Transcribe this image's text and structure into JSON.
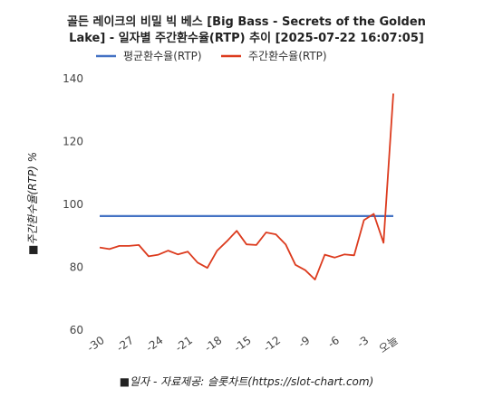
{
  "chart_data": {
    "type": "line",
    "title_lines": [
      "골든 레이크의 비밀 빅 베스 [Big Bass - Secrets of the Golden",
      "Lake] - 일자별 주간환수율(RTP) 추이 [2025-07-22 16:07:05]"
    ],
    "xlabel": "■일자 - 자료제공: 슬롯차트(https://slot-chart.com)",
    "ylabel": "■주간환수율(RTP) %",
    "ylim": [
      60,
      140
    ],
    "yticks": [
      60,
      80,
      100,
      120,
      140
    ],
    "xticks": [
      "-30",
      "-27",
      "-24",
      "-21",
      "-18",
      "-15",
      "-12",
      "-9",
      "-6",
      "-3",
      "오늘"
    ],
    "xtick_positions": [
      -30,
      -27,
      -24,
      -21,
      -18,
      -15,
      -12,
      -9,
      -6,
      -3,
      0
    ],
    "xlim": [
      -30,
      0
    ],
    "grid": false,
    "legend_position": "top-left",
    "series": [
      {
        "name": "평균환수율(RTP)",
        "color": "#4472c4",
        "x": [
          -30,
          0
        ],
        "values": [
          96,
          96
        ]
      },
      {
        "name": "주간환수율(RTP)",
        "color": "#dc3b1e",
        "x": [
          -30,
          -29,
          -28,
          -27,
          -26,
          -25,
          -24,
          -23,
          -22,
          -21,
          -20,
          -19,
          -18,
          -17,
          -16,
          -15,
          -14,
          -13,
          -12,
          -11,
          -10,
          -9,
          -8,
          -7,
          -6,
          -5,
          -4,
          -3,
          -2,
          -1,
          0
        ],
        "values": [
          86,
          85.5,
          86.5,
          86.5,
          86.8,
          83.2,
          83.7,
          85,
          83.8,
          84.7,
          81.2,
          79.5,
          85,
          88,
          91.3,
          87,
          86.8,
          90.8,
          90.2,
          87,
          80.5,
          78.8,
          75.8,
          83.7,
          82.8,
          83.8,
          83.5,
          94.7,
          96.7,
          87.5,
          135
        ]
      }
    ]
  }
}
